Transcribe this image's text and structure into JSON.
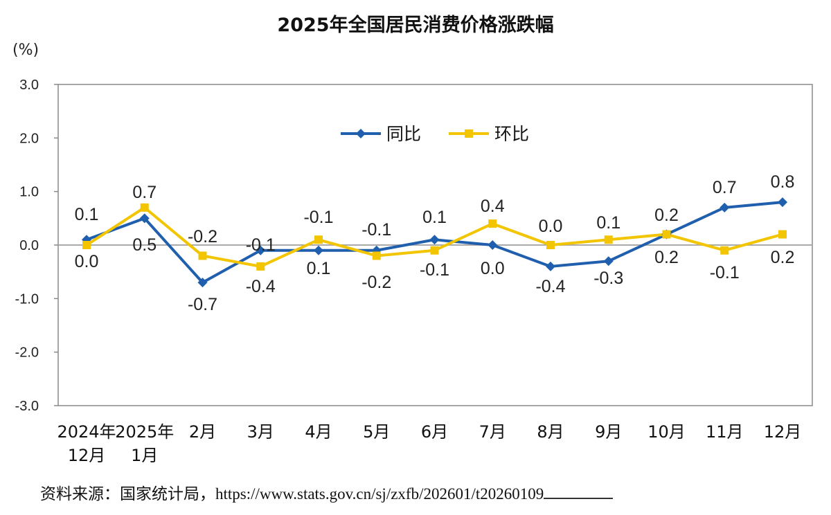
{
  "chart_data": {
    "type": "line",
    "title": "2025年全国居民消费价格涨跌幅",
    "ylabel": "(%)",
    "ylim": [
      -3.0,
      3.0
    ],
    "yticks": [
      "3.0",
      "2.0",
      "1.0",
      "0.0",
      "-1.0",
      "-2.0",
      "-3.0"
    ],
    "ytick_values": [
      3,
      2,
      1,
      0,
      -1,
      -2,
      -3
    ],
    "categories": [
      [
        "2024年",
        "12月"
      ],
      [
        "2025年",
        "1月"
      ],
      [
        "2月"
      ],
      [
        "3月"
      ],
      [
        "4月"
      ],
      [
        "5月"
      ],
      [
        "6月"
      ],
      [
        "7月"
      ],
      [
        "8月"
      ],
      [
        "9月"
      ],
      [
        "10月"
      ],
      [
        "11月"
      ],
      [
        "12月"
      ]
    ],
    "legend_position": "top-center",
    "series": [
      {
        "name": "同比",
        "color": "#1f5fad",
        "marker": "diamond",
        "values": [
          0.1,
          0.5,
          -0.7,
          -0.1,
          -0.1,
          -0.1,
          0.1,
          0.0,
          -0.4,
          -0.3,
          0.2,
          0.7,
          0.8
        ],
        "labels": [
          "0.1",
          "0.5",
          "-0.7",
          "-0.1",
          "-0.1",
          "-0.1",
          "0.1",
          "0.0",
          "-0.4",
          "-0.3",
          "0.2",
          "0.7",
          "0.8"
        ]
      },
      {
        "name": "环比",
        "color": "#f2c500",
        "marker": "square",
        "values": [
          0.0,
          0.7,
          -0.2,
          -0.4,
          0.1,
          -0.2,
          -0.1,
          0.4,
          0.0,
          0.1,
          0.2,
          -0.1,
          0.2
        ],
        "labels": [
          "0.0",
          "0.7",
          "-0.2",
          "-0.4",
          "0.1",
          "-0.2",
          "-0.1",
          "0.4",
          "0.0",
          "0.1",
          "0.2",
          "-0.1",
          "0.2"
        ]
      }
    ]
  },
  "source": "资料来源：国家统计局，https://www.stats.gov.cn/sj/zxfb/202601/t20260109",
  "colors": {
    "axis": "#888888",
    "zero_line": "#aaaaaa",
    "text": "#111111"
  }
}
